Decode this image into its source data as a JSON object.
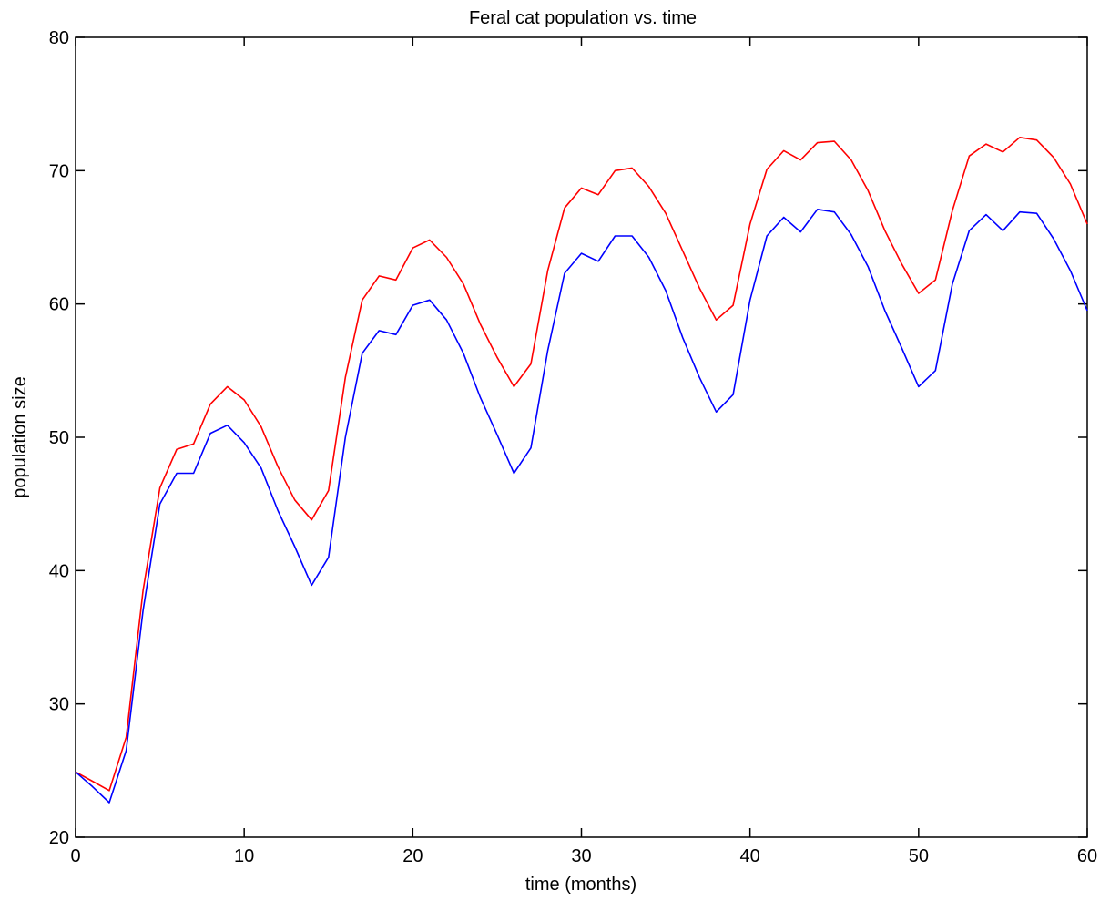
{
  "chart_data": {
    "type": "line",
    "title": "Feral cat population vs. time",
    "xlabel": "time (months)",
    "ylabel": "population size",
    "xlim": [
      0,
      60
    ],
    "ylim": [
      20,
      80
    ],
    "xticks": [
      0,
      10,
      20,
      30,
      40,
      50,
      60
    ],
    "yticks": [
      20,
      30,
      40,
      50,
      60,
      70,
      80
    ],
    "grid": false,
    "x": [
      0,
      1,
      2,
      3,
      4,
      5,
      6,
      7,
      8,
      9,
      10,
      11,
      12,
      13,
      14,
      15,
      16,
      17,
      18,
      19,
      20,
      21,
      22,
      23,
      24,
      25,
      26,
      27,
      28,
      29,
      30,
      31,
      32,
      33,
      34,
      35,
      36,
      37,
      38,
      39,
      40,
      41,
      42,
      43,
      44,
      45,
      46,
      47,
      48,
      49,
      50,
      51,
      52,
      53,
      54,
      55,
      56,
      57,
      58,
      59,
      60
    ],
    "series": [
      {
        "color": "#ff0000",
        "values": [
          24.9,
          24.2,
          23.5,
          27.5,
          38.5,
          46.2,
          49.1,
          49.5,
          52.5,
          53.8,
          52.8,
          50.8,
          47.8,
          45.3,
          43.8,
          46.0,
          54.5,
          60.3,
          62.1,
          61.8,
          64.2,
          64.8,
          63.5,
          61.5,
          58.5,
          56.0,
          53.8,
          55.5,
          62.5,
          67.2,
          68.7,
          68.2,
          70.0,
          70.2,
          68.8,
          66.8,
          64.0,
          61.2,
          58.8,
          59.9,
          66.0,
          70.1,
          71.5,
          70.8,
          72.1,
          72.2,
          70.8,
          68.5,
          65.5,
          63.0,
          60.8,
          61.8,
          67.0,
          71.1,
          72.0,
          71.4,
          72.5,
          72.3,
          71.0,
          69.0,
          66.0
        ]
      },
      {
        "color": "#0000ff",
        "values": [
          24.9,
          23.8,
          22.6,
          26.5,
          37.0,
          45.0,
          47.3,
          47.3,
          50.3,
          50.9,
          49.6,
          47.7,
          44.5,
          41.8,
          38.9,
          41.0,
          50.0,
          56.3,
          58.0,
          57.7,
          59.9,
          60.3,
          58.8,
          56.3,
          53.0,
          50.2,
          47.3,
          49.2,
          56.5,
          62.3,
          63.8,
          63.2,
          65.1,
          65.1,
          63.5,
          61.0,
          57.5,
          54.5,
          51.9,
          53.2,
          60.3,
          65.1,
          66.5,
          65.4,
          67.1,
          66.9,
          65.2,
          62.8,
          59.5,
          56.7,
          53.8,
          55.0,
          61.5,
          65.5,
          66.7,
          65.5,
          66.9,
          66.8,
          64.9,
          62.5,
          59.5
        ]
      }
    ]
  }
}
